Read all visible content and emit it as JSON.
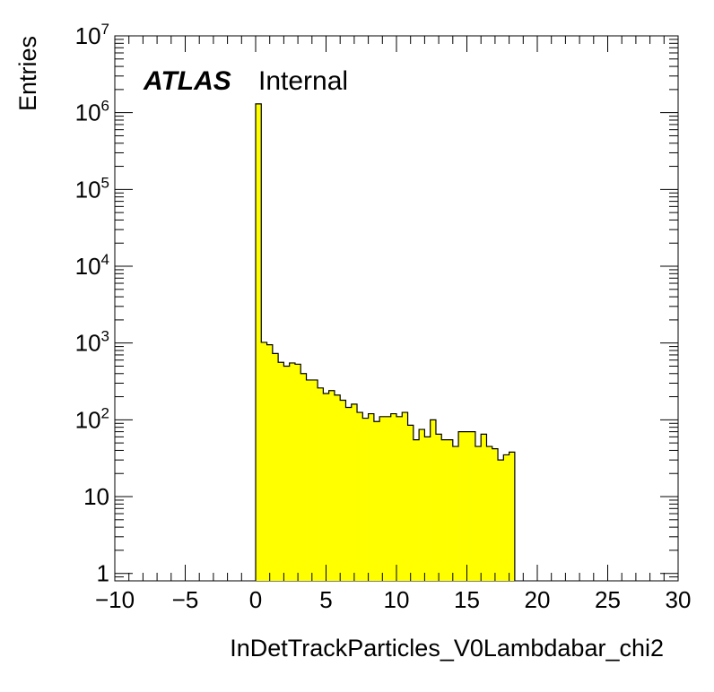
{
  "chart_data": {
    "type": "bar",
    "histogram": true,
    "xlabel": "InDetTrackParticles_V0Lambdabar_chi2",
    "ylabel": "Entries",
    "xlim": [
      -10,
      30
    ],
    "ylim": [
      0.8,
      10000000
    ],
    "log_y": true,
    "grid": false,
    "fill_color": "#ffff00",
    "line_color": "#000000",
    "annotation": {
      "experiment": "ATLAS",
      "status": "Internal"
    },
    "x_ticks": [
      {
        "value": -10,
        "label": "−10"
      },
      {
        "value": -5,
        "label": "−5"
      },
      {
        "value": 0,
        "label": "0"
      },
      {
        "value": 5,
        "label": "5"
      },
      {
        "value": 10,
        "label": "10"
      },
      {
        "value": 15,
        "label": "15"
      },
      {
        "value": 20,
        "label": "20"
      },
      {
        "value": 25,
        "label": "25"
      },
      {
        "value": 30,
        "label": "30"
      }
    ],
    "y_ticks": [
      {
        "value": 1,
        "base": "1",
        "exp": ""
      },
      {
        "value": 10,
        "base": "10",
        "exp": ""
      },
      {
        "value": 100,
        "base": "10",
        "exp": "2"
      },
      {
        "value": 1000,
        "base": "10",
        "exp": "3"
      },
      {
        "value": 10000,
        "base": "10",
        "exp": "4"
      },
      {
        "value": 100000,
        "base": "10",
        "exp": "5"
      },
      {
        "value": 1000000,
        "base": "10",
        "exp": "6"
      },
      {
        "value": 10000000,
        "base": "10",
        "exp": "7"
      }
    ],
    "bin_start": 0,
    "bin_width": 0.4,
    "values": [
      1300000,
      1020,
      950,
      730,
      560,
      500,
      550,
      530,
      400,
      330,
      330,
      260,
      220,
      240,
      210,
      180,
      145,
      160,
      125,
      105,
      120,
      95,
      110,
      110,
      120,
      110,
      125,
      85,
      55,
      75,
      60,
      100,
      65,
      55,
      55,
      45,
      70,
      70,
      70,
      45,
      65,
      45,
      42,
      30,
      35,
      38
    ]
  }
}
